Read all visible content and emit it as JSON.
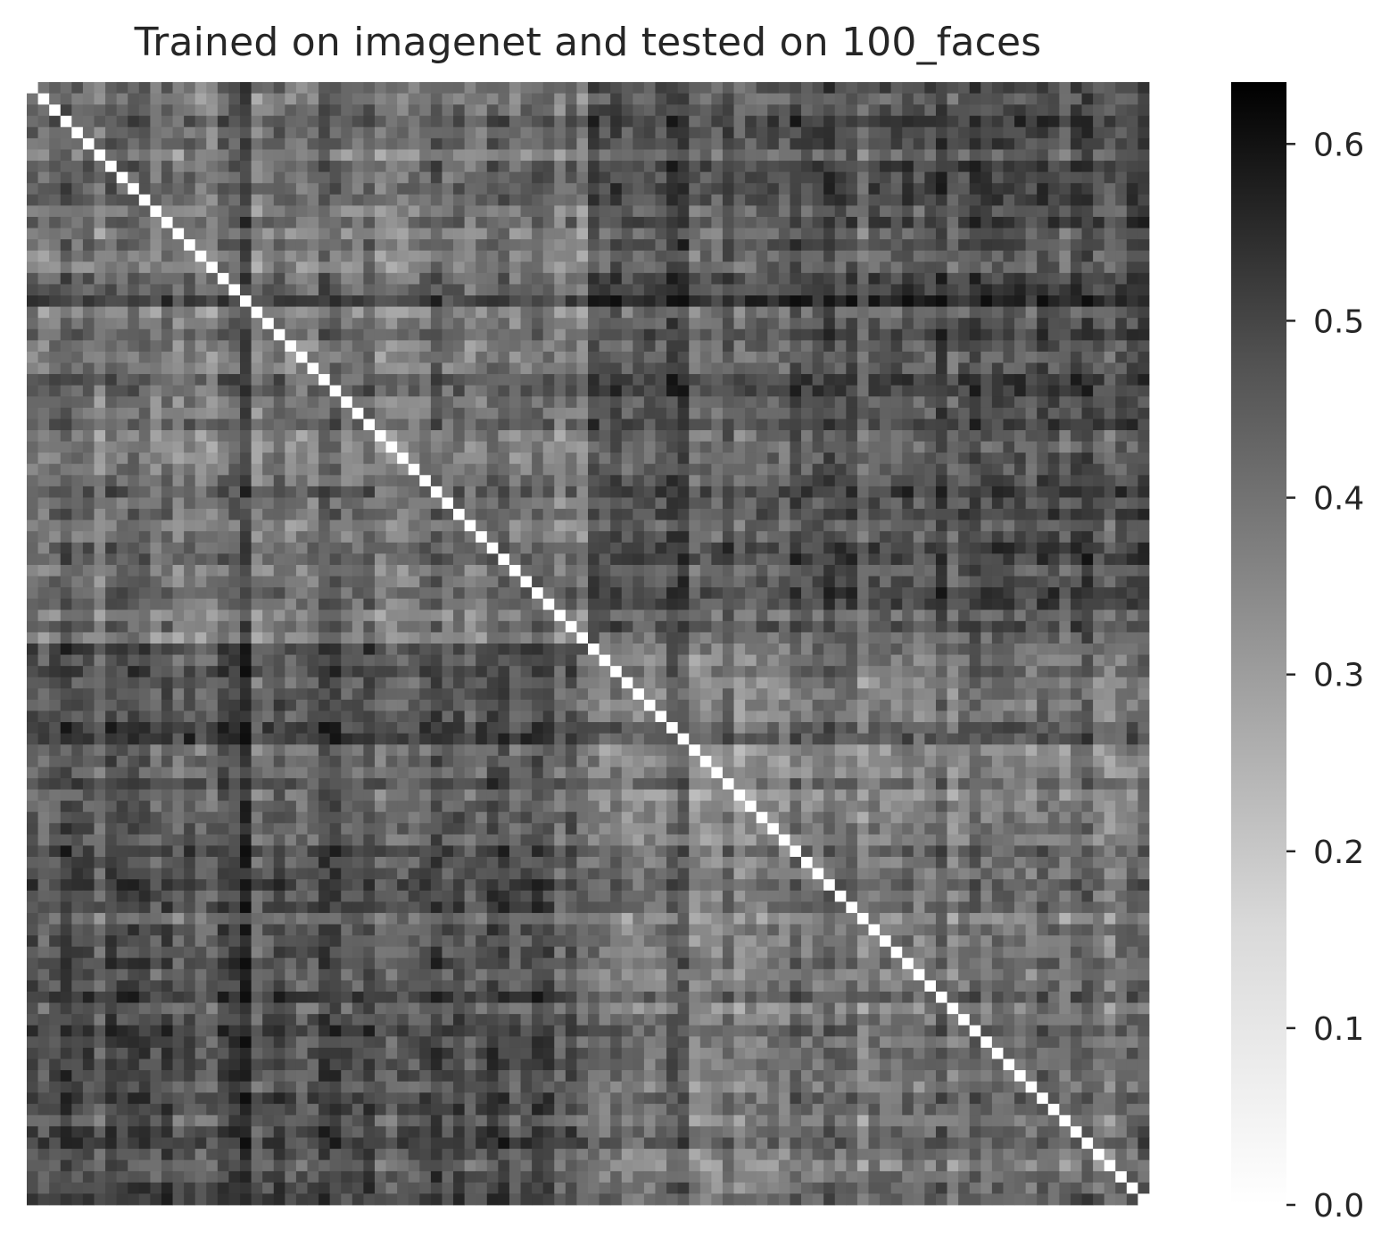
{
  "chart_data": {
    "type": "heatmap",
    "title": "Trained on imagenet and tested on 100_faces",
    "rows": 100,
    "cols": 100,
    "colormap": "Greys",
    "colorbar": {
      "vmin": 0.0,
      "vmax": 0.635,
      "ticks": [
        0.0,
        0.1,
        0.2,
        0.3,
        0.4,
        0.5,
        0.6
      ],
      "tick_labels": [
        "0.0",
        "0.1",
        "0.2",
        "0.3",
        "0.4",
        "0.5",
        "0.6"
      ]
    },
    "diagonal_value": 0.0,
    "value_range_estimate": [
      0.15,
      0.6
    ],
    "axes_visible": false,
    "grid": false,
    "colorbar_position": "right"
  }
}
